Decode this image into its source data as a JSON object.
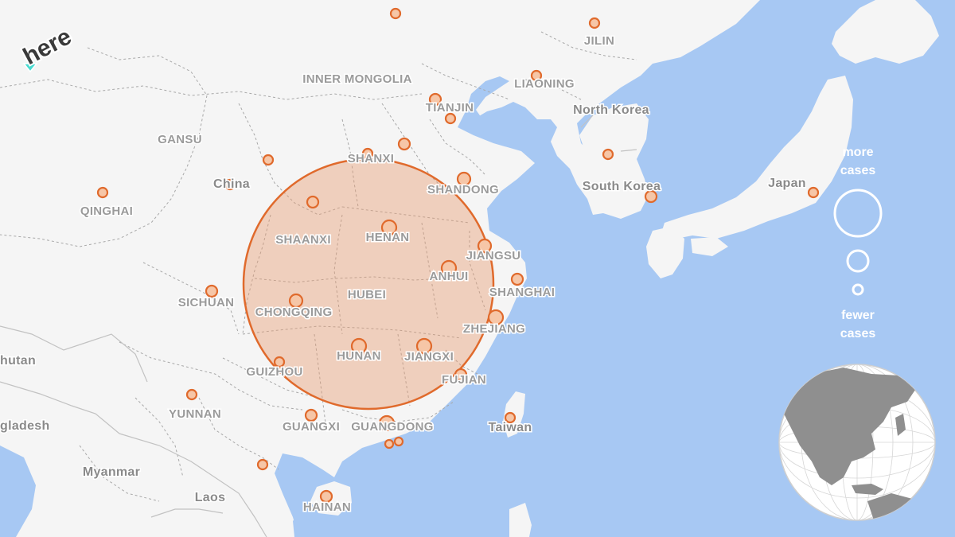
{
  "logo": {
    "text": "here"
  },
  "legend": {
    "more_label_1": "more",
    "more_label_2": "cases",
    "fewer_label_1": "fewer",
    "fewer_label_2": "cases"
  },
  "colors": {
    "water": "#a7c8f3",
    "land": "#f5f5f5",
    "marker": "#e06a2c",
    "marker_fill": "#f2c9b3"
  },
  "provinces": [
    {
      "id": "inner-mongolia",
      "name": "INNER MONGOLIA"
    },
    {
      "id": "jilin",
      "name": "JILIN"
    },
    {
      "id": "liaoning",
      "name": "LIAONING"
    },
    {
      "id": "tianjin",
      "name": "TIANJIN"
    },
    {
      "id": "gansu",
      "name": "GANSU"
    },
    {
      "id": "shanxi",
      "name": "SHANXI"
    },
    {
      "id": "shandong",
      "name": "SHANDONG"
    },
    {
      "id": "qinghai",
      "name": "QINGHAI"
    },
    {
      "id": "shaanxi",
      "name": "SHAANXI"
    },
    {
      "id": "henan",
      "name": "HENAN"
    },
    {
      "id": "jiangsu",
      "name": "JIANGSU"
    },
    {
      "id": "anhui",
      "name": "ANHUI"
    },
    {
      "id": "shanghai",
      "name": "SHANGHAI"
    },
    {
      "id": "hubei",
      "name": "HUBEI"
    },
    {
      "id": "sichuan",
      "name": "SICHUAN"
    },
    {
      "id": "chongqing",
      "name": "CHONGQING"
    },
    {
      "id": "zhejiang",
      "name": "ZHEJIANG"
    },
    {
      "id": "hunan",
      "name": "HUNAN"
    },
    {
      "id": "jiangxi",
      "name": "JIANGXI"
    },
    {
      "id": "guizhou",
      "name": "GUIZHOU"
    },
    {
      "id": "fujian",
      "name": "FUJIAN"
    },
    {
      "id": "yunnan",
      "name": "YUNNAN"
    },
    {
      "id": "guangxi",
      "name": "GUANGXI"
    },
    {
      "id": "guangdong",
      "name": "GUANGDONG"
    },
    {
      "id": "hainan",
      "name": "HAINAN"
    }
  ],
  "countries": [
    {
      "id": "china",
      "name": "China"
    },
    {
      "id": "north-korea",
      "name": "North Korea"
    },
    {
      "id": "south-korea",
      "name": "South Korea"
    },
    {
      "id": "japan",
      "name": "Japan"
    },
    {
      "id": "taiwan",
      "name": "Taiwan"
    },
    {
      "id": "bhutan",
      "name": "hutan"
    },
    {
      "id": "bangladesh",
      "name": "gladesh"
    },
    {
      "id": "myanmar",
      "name": "Myanmar"
    },
    {
      "id": "laos",
      "name": "Laos"
    }
  ]
}
